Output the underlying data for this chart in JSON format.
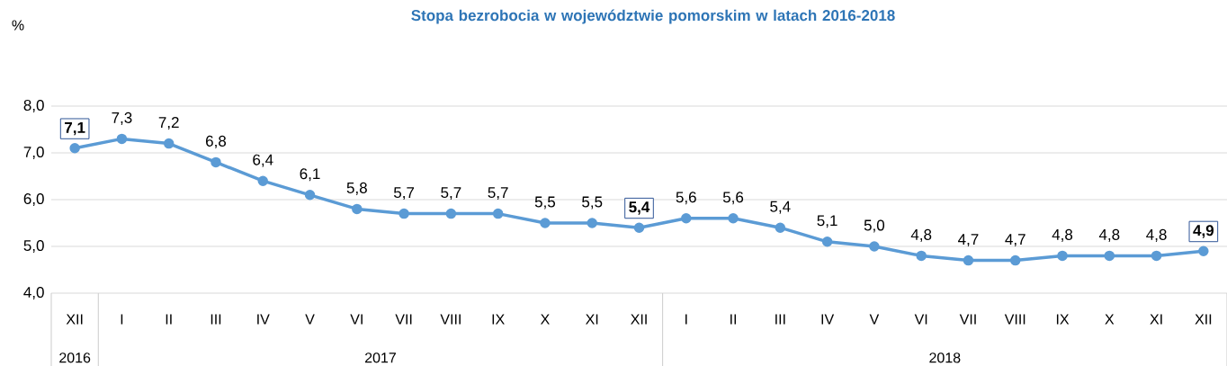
{
  "chart_data": {
    "type": "line",
    "title": "Stopa bezrobocia w województwie pomorskim w latach 2016-2018",
    "ylabel": "%",
    "categories": [
      "XII",
      "I",
      "II",
      "III",
      "IV",
      "V",
      "VI",
      "VII",
      "VIII",
      "IX",
      "X",
      "XI",
      "XII",
      "I",
      "II",
      "III",
      "IV",
      "V",
      "VI",
      "VII",
      "VIII",
      "IX",
      "X",
      "XI",
      "XII"
    ],
    "values": [
      7.1,
      7.3,
      7.2,
      6.8,
      6.4,
      6.1,
      5.8,
      5.7,
      5.7,
      5.7,
      5.5,
      5.5,
      5.4,
      5.6,
      5.6,
      5.4,
      5.1,
      5.0,
      4.8,
      4.7,
      4.7,
      4.8,
      4.8,
      4.8,
      4.9
    ],
    "value_labels": [
      "7,1",
      "7,3",
      "7,2",
      "6,8",
      "6,4",
      "6,1",
      "5,8",
      "5,7",
      "5,7",
      "5,7",
      "5,5",
      "5,5",
      "5,4",
      "5,6",
      "5,6",
      "5,4",
      "5,1",
      "5,0",
      "4,8",
      "4,7",
      "4,7",
      "4,8",
      "4,8",
      "4,8",
      "4,9"
    ],
    "color": "#5b9bd5",
    "marker": "circle",
    "line_style": "solid",
    "grid": "y",
    "ylim": [
      4,
      8
    ],
    "yticks": [
      {
        "value": 4,
        "label": "4,0"
      },
      {
        "value": 5,
        "label": "5,0"
      },
      {
        "value": 6,
        "label": "6,0"
      },
      {
        "value": 7,
        "label": "7,0"
      },
      {
        "value": 8,
        "label": "8,0"
      }
    ],
    "annotations": [
      "2016",
      "2017",
      "2018"
    ]
  }
}
